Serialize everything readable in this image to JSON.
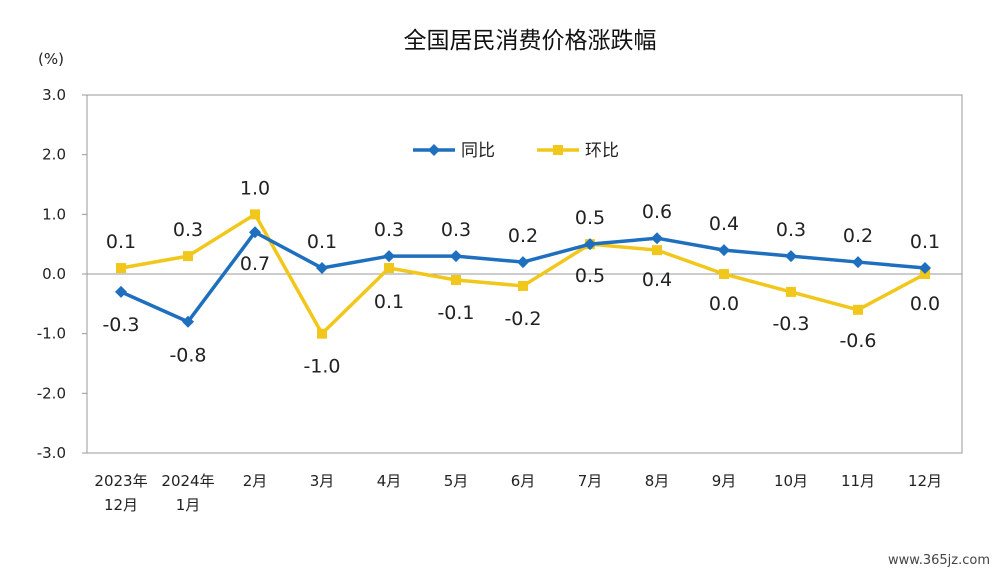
{
  "chart_data": {
    "type": "line",
    "title": "全国居民消费价格涨跌幅",
    "unit_label": "(%)",
    "ylim": [
      -3.0,
      3.0
    ],
    "yticks": [
      "3.0",
      "2.0",
      "1.0",
      "0.0",
      "-1.0",
      "-2.0",
      "-3.0"
    ],
    "categories": [
      [
        "2023年",
        "12月"
      ],
      [
        "2024年",
        "1月"
      ],
      [
        "2月"
      ],
      [
        "3月"
      ],
      [
        "4月"
      ],
      [
        "5月"
      ],
      [
        "6月"
      ],
      [
        "7月"
      ],
      [
        "8月"
      ],
      [
        "9月"
      ],
      [
        "10月"
      ],
      [
        "11月"
      ],
      [
        "12月"
      ]
    ],
    "series": [
      {
        "name": "同比",
        "color": "#1f6fbf",
        "marker": "diamond",
        "values": [
          -0.3,
          -0.8,
          0.7,
          0.1,
          0.3,
          0.3,
          0.2,
          0.5,
          0.6,
          0.4,
          0.3,
          0.2,
          0.1
        ],
        "labels": [
          "-0.3",
          "-0.8",
          "0.7",
          "0.1",
          "0.3",
          "0.3",
          "0.2",
          "0.5",
          "0.6",
          "0.4",
          "0.3",
          "0.2",
          "0.1"
        ]
      },
      {
        "name": "环比",
        "color": "#f2c71c",
        "marker": "square",
        "values": [
          0.1,
          0.3,
          1.0,
          -1.0,
          0.1,
          -0.1,
          -0.2,
          0.5,
          0.4,
          0.0,
          -0.3,
          -0.6,
          0.0
        ],
        "labels": [
          "0.1",
          "0.3",
          "1.0",
          "-1.0",
          "0.1",
          "-0.1",
          "-0.2",
          "0.5",
          "0.4",
          "0.0",
          "-0.3",
          "-0.6",
          "0.0"
        ]
      }
    ],
    "legend_position": "top-center",
    "grid": false
  },
  "watermark": "www.365jz.com"
}
